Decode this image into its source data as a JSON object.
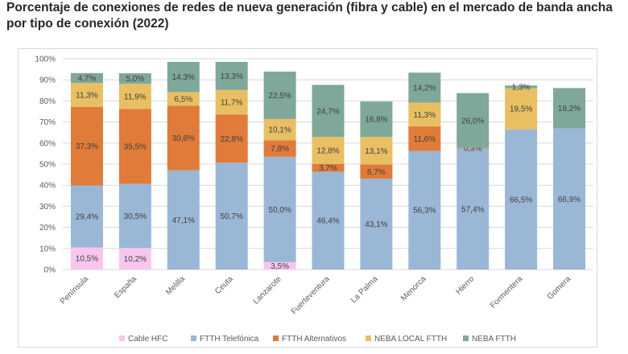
{
  "title": "Porcentaje de conexiones de redes de nueva generación (fibra y cable) en el mercado de banda ancha por tipo de conexión (2022)",
  "chart_data": {
    "type": "bar",
    "stacked": true,
    "title": "Porcentaje de conexiones de redes de nueva generación (fibra y cable) en el mercado de banda ancha por tipo de conexión (2022)",
    "categories": [
      "Península",
      "España",
      "Melilla",
      "Ceuta",
      "Lanzarote",
      "Fuerteventura",
      "La Palma",
      "Menorca",
      "Hierro",
      "Formentera",
      "Gomera"
    ],
    "ylim": [
      0,
      100
    ],
    "yticks": [
      "0%",
      "10%",
      "20%",
      "30%",
      "40%",
      "50%",
      "60%",
      "70%",
      "80%",
      "90%",
      "100%"
    ],
    "grid": true,
    "legend_position": "bottom",
    "series": [
      {
        "name": "Cable HFC",
        "color": "#f7c6ef",
        "values": [
          10.5,
          10.2,
          0,
          0,
          3.5,
          0,
          0,
          0,
          0,
          0,
          0
        ],
        "labels": [
          "10,5%",
          "10,2%",
          "",
          "",
          "3,5%",
          "",
          "",
          "",
          "",
          "",
          ""
        ]
      },
      {
        "name": "FTTH Telefónica",
        "color": "#9bb7d6",
        "values": [
          29.4,
          30.5,
          47.1,
          50.7,
          50.0,
          46.4,
          43.1,
          56.3,
          57.4,
          66.5,
          66.9
        ],
        "labels": [
          "29,4%",
          "30,5%",
          "47,1%",
          "50,7%",
          "50,0%",
          "46,4%",
          "43,1%",
          "56,3%",
          "57,4%",
          "66,5%",
          "66,9%"
        ]
      },
      {
        "name": "FTTH Alternativos",
        "color": "#e07b39",
        "values": [
          37.3,
          35.5,
          30.6,
          22.8,
          7.8,
          3.7,
          6.7,
          11.6,
          0.3,
          0,
          0
        ],
        "labels": [
          "37,3%",
          "35,5%",
          "30,6%",
          "22,8%",
          "7,8%",
          "3,7%",
          "6,7%",
          "11,6%",
          "0,3%",
          "",
          ""
        ]
      },
      {
        "name": "NEBA LOCAL FTTH",
        "color": "#e8bf62",
        "values": [
          11.3,
          11.9,
          6.5,
          11.7,
          10.1,
          12.8,
          13.1,
          11.3,
          0,
          19.5,
          0
        ],
        "labels": [
          "11,3%",
          "11,9%",
          "6,5%",
          "11,7%",
          "10,1%",
          "12,8%",
          "13,1%",
          "11,3%",
          "",
          "19,5%",
          ""
        ]
      },
      {
        "name": "NEBA FTTH",
        "color": "#7fa79a",
        "values": [
          4.7,
          5.0,
          14.3,
          13.3,
          22.5,
          24.7,
          16.8,
          14.2,
          26.0,
          1.3,
          19.2
        ],
        "labels": [
          "4,7%",
          "5,0%",
          "14,3%",
          "13,3%",
          "22,5%",
          "24,7%",
          "16,8%",
          "14,2%",
          "26,0%",
          "1,3%",
          "19,2%"
        ]
      }
    ]
  }
}
